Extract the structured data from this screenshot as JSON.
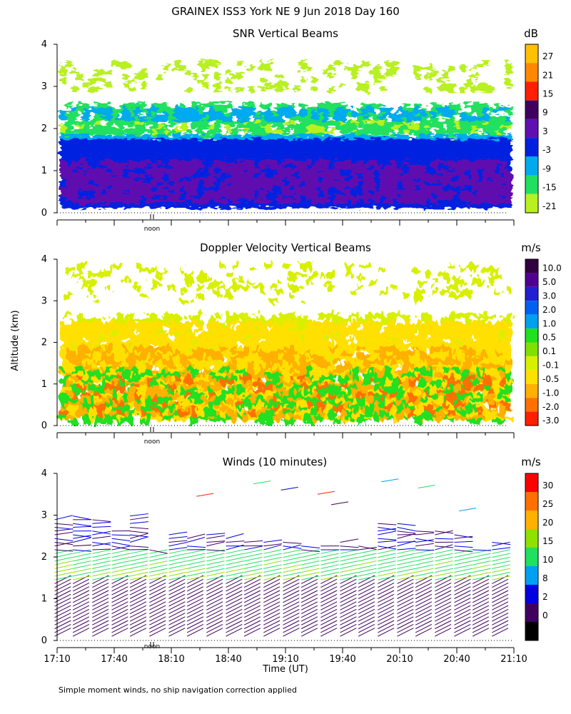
{
  "header": {
    "title": "GRAINEX ISS3 York NE   9 Jun 2018 Day 160",
    "ylabel": "Altitude (km)",
    "xlabel": "Time (UT)",
    "noon_label": "noon",
    "footnote": "Simple moment winds, no ship navigation correction applied"
  },
  "chart_data": [
    {
      "type": "heatmap",
      "title": "SNR Vertical Beams",
      "units": "dB",
      "ylim": [
        0,
        4
      ],
      "yticks": [
        "0",
        "1",
        "2",
        "3",
        "4"
      ],
      "colorbar": {
        "labels": [
          "27",
          "21",
          "15",
          "9",
          "3",
          "-3",
          "-9",
          "-15",
          "-21"
        ],
        "colors": [
          "#ffc000",
          "#ff8800",
          "#ff2000",
          "#400060",
          "#6010b0",
          "#0020e0",
          "#00aaee",
          "#20e060",
          "#b8f020"
        ]
      },
      "layers": [
        {
          "name": "-21",
          "rows": [
            [
              1.95,
              2.2,
              0.62
            ],
            [
              2.9,
              3.6,
              0.25
            ]
          ]
        },
        {
          "name": "-15",
          "rows": [
            [
              1.85,
              2.6,
              0.6
            ]
          ]
        },
        {
          "name": "-9",
          "rows": [
            [
              1.3,
              1.85,
              0.9
            ],
            [
              2.2,
              2.5,
              0.55
            ]
          ]
        },
        {
          "name": "-3",
          "rows": [
            [
              0.15,
              1.75,
              1.0
            ]
          ]
        },
        {
          "name": "3",
          "rows": [
            [
              0.3,
              1.25,
              0.7
            ]
          ]
        }
      ]
    },
    {
      "type": "heatmap",
      "title": "Doppler Velocity Vertical Beams",
      "units": "m/s",
      "ylim": [
        0,
        4
      ],
      "yticks": [
        "0",
        "1",
        "2",
        "3",
        "4"
      ],
      "colorbar": {
        "labels": [
          "10.0",
          "5.0",
          "3.0",
          "2.0",
          "1.0",
          "0.5",
          "0.1",
          "-0.1",
          "-0.5",
          "-1.0",
          "-2.0",
          "-3.0"
        ],
        "colors": [
          "#300040",
          "#500090",
          "#2020d0",
          "#0060f0",
          "#00a0f0",
          "#20e020",
          "#80e000",
          "#d8f000",
          "#ffe000",
          "#ffb000",
          "#ff7000",
          "#ff2000"
        ]
      },
      "layers": [
        {
          "name": "-0.1",
          "rows": [
            [
              1.5,
              2.7,
              0.55
            ],
            [
              3.0,
              3.9,
              0.2
            ]
          ]
        },
        {
          "name": "-0.5",
          "rows": [
            [
              0.15,
              2.5,
              0.9
            ]
          ]
        },
        {
          "name": "-1.0",
          "rows": [
            [
              0.2,
              1.9,
              0.45
            ]
          ]
        },
        {
          "name": "0.5",
          "rows": [
            [
              0.15,
              1.4,
              0.35
            ]
          ]
        },
        {
          "name": "-2.0",
          "rows": [
            [
              0.3,
              1.2,
              0.15
            ]
          ]
        }
      ]
    },
    {
      "type": "scatter",
      "title": "Winds (10 minutes)",
      "units": "m/s",
      "ylim": [
        0,
        4
      ],
      "yticks": [
        "0",
        "1",
        "2",
        "3",
        "4"
      ],
      "xlim": [
        17.1667,
        21.1667
      ],
      "xticks": [
        "17:10",
        "17:40",
        "18:10",
        "18:40",
        "19:10",
        "19:40",
        "20:10",
        "20:40",
        "21:10"
      ],
      "colorbar": {
        "labels": [
          "30",
          "25",
          "20",
          "15",
          "10",
          "8",
          "2",
          "0"
        ],
        "colors": [
          "#ff0000",
          "#ff7000",
          "#ffb000",
          "#90e000",
          "#20e060",
          "#00a0f0",
          "#0000e0",
          "#400060",
          "#000000"
        ]
      },
      "profiles": {
        "times_hours": [
          17.17,
          17.33,
          17.5,
          17.67,
          17.83,
          18.0,
          18.17,
          18.33,
          18.5,
          18.67,
          18.83,
          19.0,
          19.17,
          19.33,
          19.5,
          19.67,
          19.83,
          20.0,
          20.17,
          20.33,
          20.5,
          20.67,
          20.83,
          21.0
        ],
        "tops_km": [
          2.9,
          3.0,
          2.9,
          2.7,
          3.0,
          2.2,
          2.6,
          2.5,
          2.6,
          2.5,
          2.4,
          2.4,
          2.4,
          2.3,
          2.3,
          2.4,
          2.3,
          2.8,
          2.8,
          2.7,
          2.7,
          2.6,
          2.2,
          2.4
        ],
        "low_speed_ms": 3,
        "mid_speed_ms": 14
      }
    }
  ]
}
